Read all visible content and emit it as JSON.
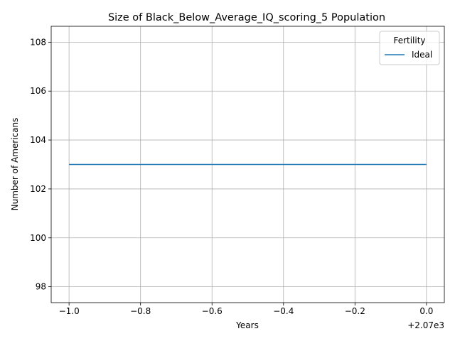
{
  "chart_data": {
    "type": "line",
    "title": "Size of Black_Below_Average_IQ_scoring_5 Population",
    "xlabel": "Years",
    "ylabel": "Number of Americans",
    "x_offset_text": "+2.07e3",
    "xlim": [
      -1.05,
      0.05
    ],
    "ylim": [
      97.35,
      108.65
    ],
    "xticks": [
      -1.0,
      -0.8,
      -0.6,
      -0.4,
      -0.2,
      0.0
    ],
    "xtick_labels": [
      "−1.0",
      "−0.8",
      "−0.6",
      "−0.4",
      "−0.2",
      "0.0"
    ],
    "yticks": [
      98,
      100,
      102,
      104,
      106,
      108
    ],
    "ytick_labels": [
      "98",
      "100",
      "102",
      "104",
      "106",
      "108"
    ],
    "grid": true,
    "legend": {
      "title": "Fertility",
      "position": "top-right"
    },
    "series": [
      {
        "name": "Ideal",
        "color": "#1f77b4",
        "x": [
          -1.0,
          0.0
        ],
        "y": [
          103,
          103
        ]
      }
    ]
  }
}
